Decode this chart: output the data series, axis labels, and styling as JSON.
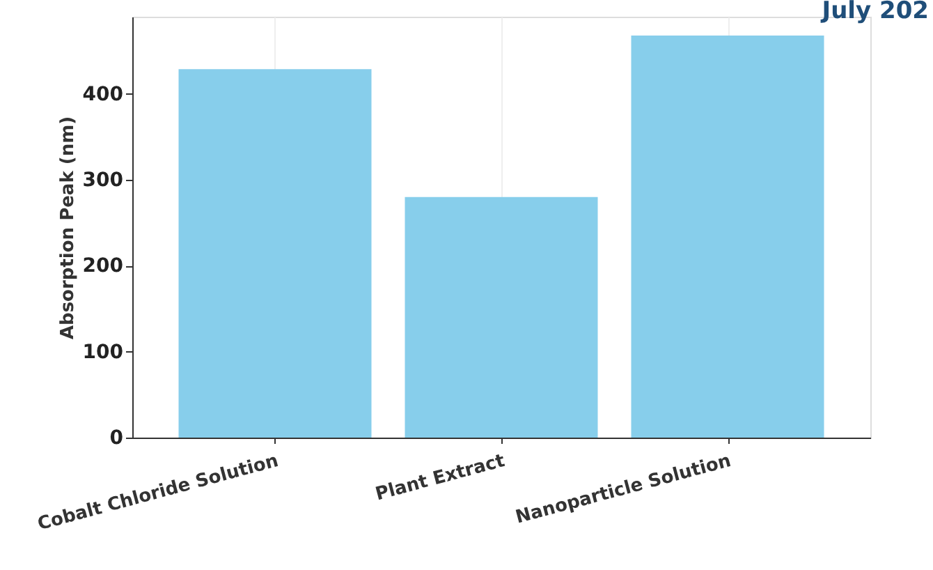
{
  "chart_data": {
    "type": "bar",
    "ylabel": "Absorption Peak (nm)",
    "categories": [
      "Cobalt Chloride Solution",
      "Plant Extract",
      "Nanoparticle Solution"
    ],
    "values": [
      429,
      280,
      468
    ],
    "color": "#87ceeb",
    "ylim": [
      0,
      490
    ],
    "yticks": [
      0,
      100,
      200,
      300,
      400
    ],
    "grid": "x",
    "annotations": [
      "July 202"
    ]
  }
}
